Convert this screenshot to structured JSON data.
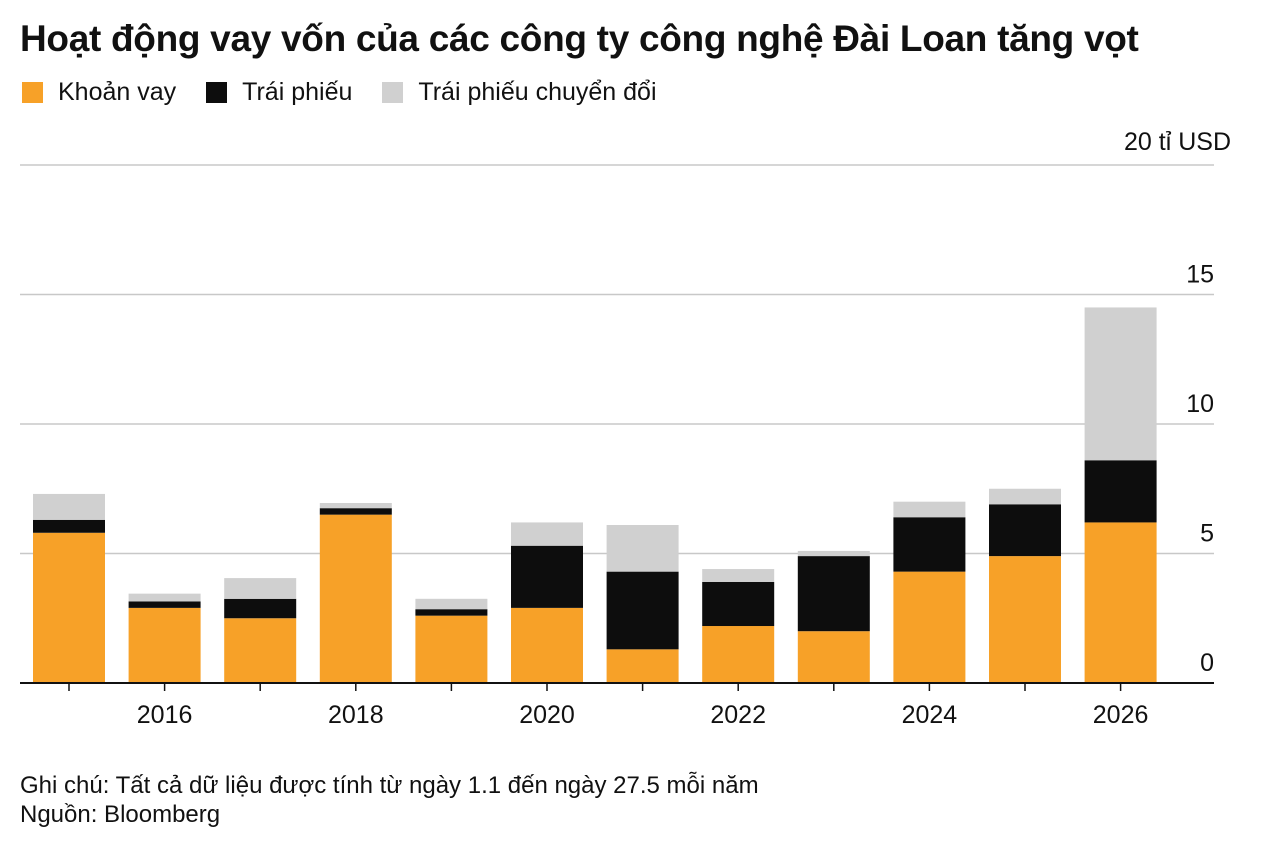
{
  "title": "Hoạt động vay vốn của các công ty công nghệ Đài Loan tăng vọt",
  "legend": [
    {
      "label": "Khoản vay",
      "color": "#f7a128"
    },
    {
      "label": "Trái phiếu",
      "color": "#0d0d0d"
    },
    {
      "label": "Trái phiếu chuyển đổi",
      "color": "#d0d0d0"
    }
  ],
  "unit_label": "20 tỉ USD",
  "note": "Ghi chú: Tất cả dữ liệu được tính từ ngày 1.1 đến ngày 27.5 mỗi năm",
  "source": "Nguồn: Bloomberg",
  "chart_data": {
    "type": "bar",
    "stacked": true,
    "title": "Hoạt động vay vốn của các công ty công nghệ Đài Loan tăng vọt",
    "unit": "20 tỉ USD",
    "categories": [
      "2015",
      "2016",
      "2017",
      "2018",
      "2019",
      "2020",
      "2021",
      "2022",
      "2023",
      "2024",
      "2025",
      "2026"
    ],
    "x_tick_labels": [
      "2016",
      "2018",
      "2020",
      "2022",
      "2024",
      "2026"
    ],
    "y_ticks": [
      0,
      5,
      10,
      15,
      20
    ],
    "y_tick_labels": [
      "0",
      "5",
      "10",
      "15",
      "20 tỉ USD"
    ],
    "ylim": [
      0,
      20
    ],
    "grid": true,
    "legend_position": "top-left",
    "series": [
      {
        "name": "Khoản vay",
        "color": "#f7a128",
        "values": [
          5.8,
          2.9,
          2.5,
          6.5,
          2.6,
          2.9,
          1.3,
          2.2,
          2.0,
          4.3,
          4.9,
          6.2
        ]
      },
      {
        "name": "Trái phiếu",
        "color": "#0d0d0d",
        "values": [
          0.5,
          0.25,
          0.75,
          0.25,
          0.25,
          2.4,
          3.0,
          1.7,
          2.9,
          2.1,
          2.0,
          2.4
        ]
      },
      {
        "name": "Trái phiếu chuyển đổi",
        "color": "#d0d0d0",
        "values": [
          1.0,
          0.3,
          0.8,
          0.2,
          0.4,
          0.9,
          1.8,
          0.5,
          0.2,
          0.6,
          0.6,
          5.9
        ]
      }
    ]
  }
}
